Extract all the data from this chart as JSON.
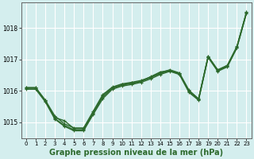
{
  "title": "Graphe pression niveau de la mer (hPa)",
  "xlabel_ticks": [
    0,
    1,
    2,
    3,
    4,
    5,
    6,
    7,
    8,
    9,
    10,
    11,
    12,
    13,
    14,
    15,
    16,
    17,
    18,
    19,
    20,
    21,
    22,
    23
  ],
  "ylim": [
    1014.5,
    1018.8
  ],
  "xlim": [
    -0.5,
    23.5
  ],
  "yticks": [
    1015,
    1016,
    1017,
    1018
  ],
  "background_color": "#d4eeee",
  "grid_color": "#ffffff",
  "line_color": "#2d6a2d",
  "line1": [
    1016.1,
    1016.1,
    1015.7,
    1015.15,
    1015.05,
    1014.8,
    1014.8,
    1015.3,
    1015.85,
    1016.1,
    1016.2,
    1016.25,
    1016.3,
    1016.45,
    1016.6,
    1016.65,
    1016.55,
    1016.0,
    1015.75,
    1017.1,
    1016.65,
    1016.8,
    1017.4,
    1018.5
  ],
  "line2": [
    1016.05,
    1016.05,
    1015.65,
    1015.1,
    1014.87,
    1014.73,
    1014.73,
    1015.25,
    1015.75,
    1016.05,
    1016.15,
    1016.2,
    1016.27,
    1016.38,
    1016.52,
    1016.62,
    1016.52,
    1015.95,
    1015.7,
    1017.06,
    1016.62,
    1016.76,
    1017.36,
    1018.46
  ],
  "line3": [
    1016.08,
    1016.08,
    1015.68,
    1015.12,
    1014.9,
    1014.76,
    1014.76,
    1015.28,
    1015.8,
    1016.08,
    1016.18,
    1016.23,
    1016.3,
    1016.42,
    1016.55,
    1016.64,
    1016.54,
    1015.97,
    1015.72,
    1017.08,
    1016.64,
    1016.78,
    1017.38,
    1018.48
  ],
  "line4": [
    1016.1,
    1016.1,
    1015.7,
    1015.2,
    1014.95,
    1014.82,
    1014.82,
    1015.35,
    1015.88,
    1016.12,
    1016.22,
    1016.27,
    1016.33,
    1016.44,
    1016.57,
    1016.67,
    1016.57,
    1016.02,
    1015.74,
    1017.1,
    1016.67,
    1016.81,
    1017.41,
    1018.5
  ],
  "marker": "+",
  "markersize": 3,
  "linewidth": 1.0,
  "fontsize_title": 7,
  "fontsize_ticks": 5,
  "figsize": [
    3.2,
    2.0
  ],
  "dpi": 100
}
